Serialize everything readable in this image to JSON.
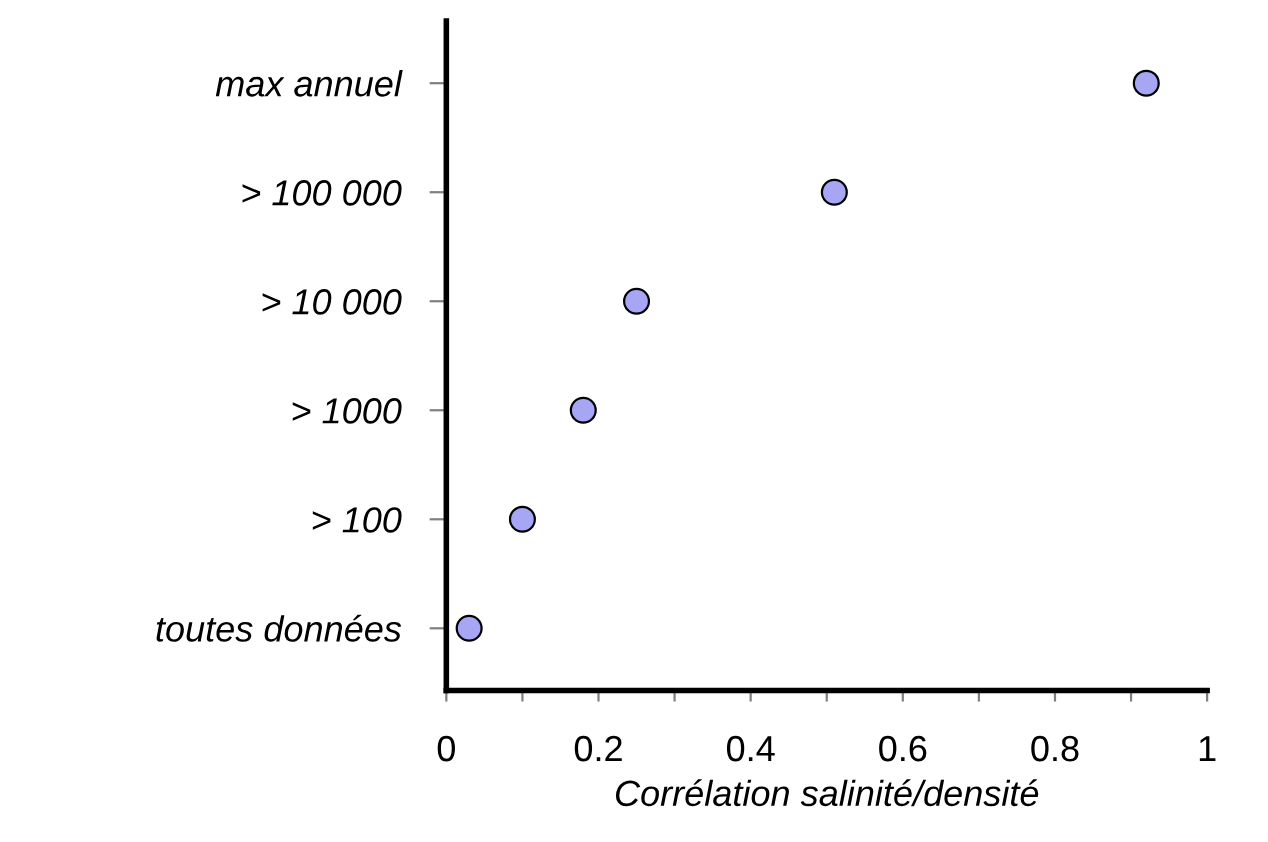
{
  "chart_data": {
    "type": "scatter",
    "orientation": "horizontal",
    "xlabel": "Corrélation salinité/densité",
    "categories": [
      "max annuel",
      "> 100 000",
      "> 10 000",
      "> 1000",
      "> 100",
      "toutes données"
    ],
    "values": [
      0.92,
      0.51,
      0.25,
      0.18,
      0.1,
      0.03
    ],
    "color": "#a6a6f5",
    "marker": "circle",
    "grid": false,
    "legend": false,
    "xlim": [
      0,
      1
    ],
    "xticks": [
      0,
      {
        "value": 0.1,
        "label": null
      },
      0.2,
      {
        "value": 0.3,
        "label": null
      },
      0.4,
      {
        "value": 0.5,
        "label": null
      },
      0.6,
      {
        "value": 0.7,
        "label": null
      },
      0.8,
      {
        "value": 0.9,
        "label": null
      },
      1
    ]
  }
}
